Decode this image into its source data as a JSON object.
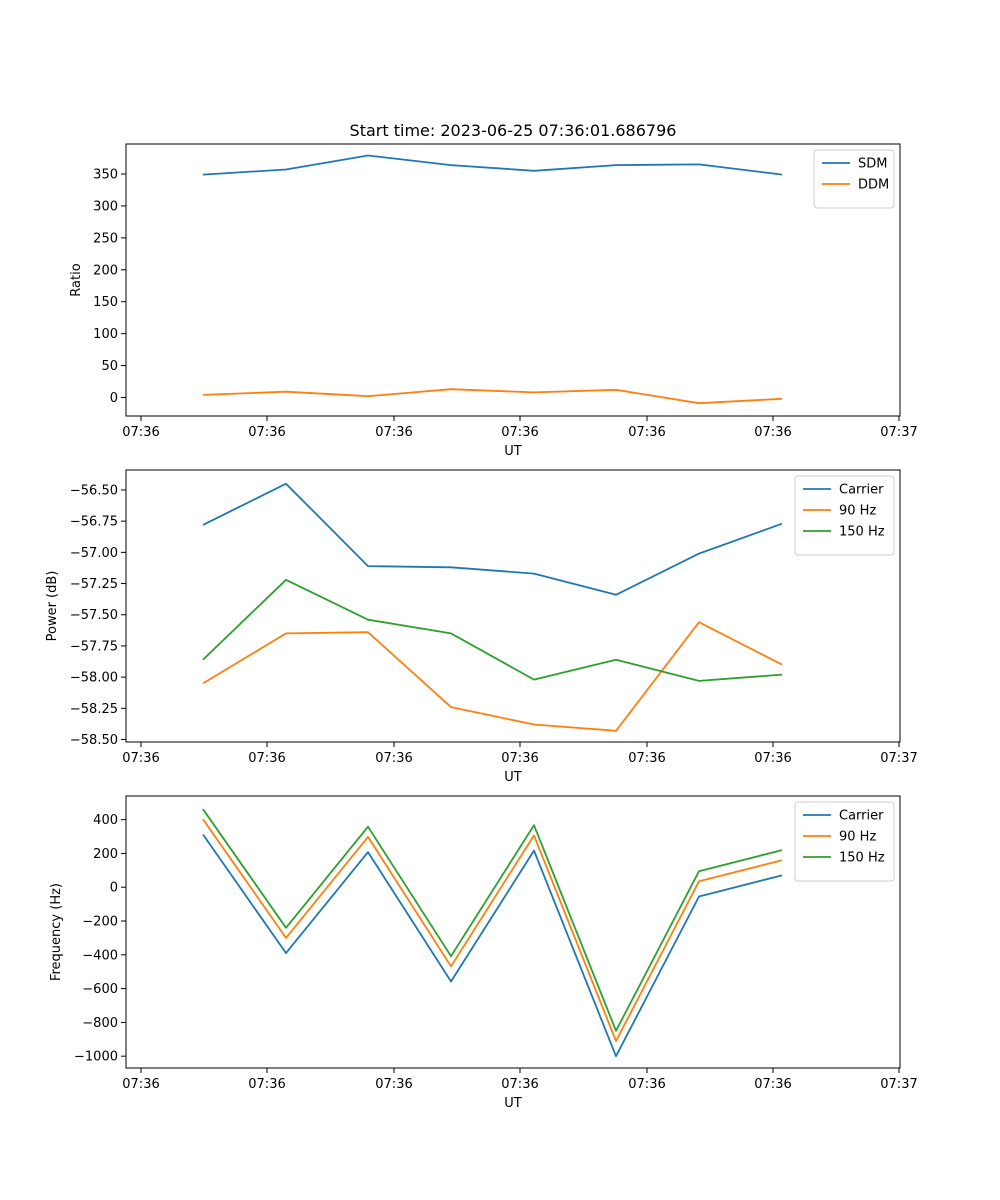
{
  "chart_data": [
    {
      "type": "line",
      "title": "Start time: 2023-06-25 07:36:01.686796",
      "xlabel": "UT",
      "ylabel": "Ratio",
      "x_ticks": [
        "07:36",
        "07:36",
        "07:36",
        "07:36",
        "07:36",
        "07:36",
        "07:37"
      ],
      "y_ticks": [
        0,
        50,
        100,
        150,
        200,
        250,
        300,
        350
      ],
      "ylim": [
        -29,
        397
      ],
      "legend_position": "top-right",
      "series": [
        {
          "name": "SDM",
          "color": "#1f77b4",
          "values": [
            349,
            357,
            379,
            364,
            355,
            364,
            365,
            349
          ]
        },
        {
          "name": "DDM",
          "color": "#ff7f0e",
          "values": [
            4,
            9,
            2,
            13,
            8,
            12,
            -9,
            -2
          ]
        }
      ]
    },
    {
      "type": "line",
      "title": "",
      "xlabel": "UT",
      "ylabel": "Power (dB)",
      "x_ticks": [
        "07:36",
        "07:36",
        "07:36",
        "07:36",
        "07:36",
        "07:36",
        "07:37"
      ],
      "y_ticks": [
        -56.5,
        -56.75,
        -57.0,
        -57.25,
        -57.5,
        -57.75,
        -58.0,
        -58.25,
        -58.5
      ],
      "y_tick_labels": [
        "−56.50",
        "−56.75",
        "−57.00",
        "−57.25",
        "−57.50",
        "−57.75",
        "−58.00",
        "−58.25",
        "−58.50"
      ],
      "ylim": [
        -58.52,
        -56.34
      ],
      "legend_position": "top-right",
      "series": [
        {
          "name": "Carrier",
          "color": "#1f77b4",
          "values": [
            -56.78,
            -56.45,
            -57.11,
            -57.12,
            -57.17,
            -57.34,
            -57.01,
            -56.77
          ]
        },
        {
          "name": "90 Hz",
          "color": "#ff7f0e",
          "values": [
            -58.05,
            -57.65,
            -57.64,
            -58.24,
            -58.38,
            -58.43,
            -57.56,
            -57.9
          ]
        },
        {
          "name": "150 Hz",
          "color": "#2ca02c",
          "values": [
            -57.86,
            -57.22,
            -57.54,
            -57.65,
            -58.02,
            -57.86,
            -58.03,
            -57.98
          ]
        }
      ]
    },
    {
      "type": "line",
      "title": "",
      "xlabel": "UT",
      "ylabel": "Frequency (Hz)",
      "x_ticks": [
        "07:36",
        "07:36",
        "07:36",
        "07:36",
        "07:36",
        "07:36",
        "07:37"
      ],
      "y_ticks": [
        400,
        200,
        0,
        -200,
        -400,
        -600,
        -800,
        -1000
      ],
      "y_tick_labels": [
        "400",
        "200",
        "0",
        "−200",
        "−400",
        "−600",
        "−800",
        "−1000"
      ],
      "ylim": [
        -1070,
        540
      ],
      "legend_position": "top-right",
      "series": [
        {
          "name": "Carrier",
          "color": "#1f77b4",
          "values": [
            312,
            -390,
            208,
            -558,
            217,
            -1000,
            -55,
            70
          ]
        },
        {
          "name": "90 Hz",
          "color": "#ff7f0e",
          "values": [
            402,
            -300,
            298,
            -468,
            307,
            -910,
            35,
            160
          ]
        },
        {
          "name": "150 Hz",
          "color": "#2ca02c",
          "values": [
            462,
            -240,
            358,
            -408,
            367,
            -850,
            95,
            220
          ]
        }
      ]
    }
  ]
}
